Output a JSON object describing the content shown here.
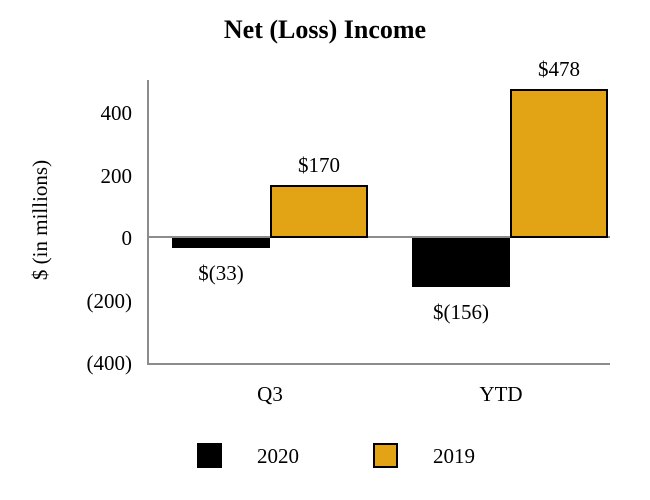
{
  "chart_data": {
    "type": "bar",
    "title": "Net (Loss) Income",
    "ylabel": "$ (in millions)",
    "xlabel": "",
    "categories": [
      "Q3",
      "YTD"
    ],
    "series": [
      {
        "name": "2020",
        "color": "#000000",
        "values": [
          -33,
          -156
        ],
        "value_labels": [
          "$(33)",
          "$(156)"
        ]
      },
      {
        "name": "2019",
        "color": "#E2A414",
        "values": [
          170,
          478
        ],
        "value_labels": [
          "$170",
          "$478"
        ]
      }
    ],
    "yticks": [
      {
        "value": 400,
        "label": "400"
      },
      {
        "value": 200,
        "label": "200"
      },
      {
        "value": 0,
        "label": "0"
      },
      {
        "value": -200,
        "label": "(200)"
      },
      {
        "value": -400,
        "label": "(400)"
      }
    ],
    "ylim": [
      -400,
      500
    ],
    "grid": false,
    "legend_position": "bottom",
    "bar_edge_color": "#000000",
    "axis_color": "#8C8C8C"
  }
}
